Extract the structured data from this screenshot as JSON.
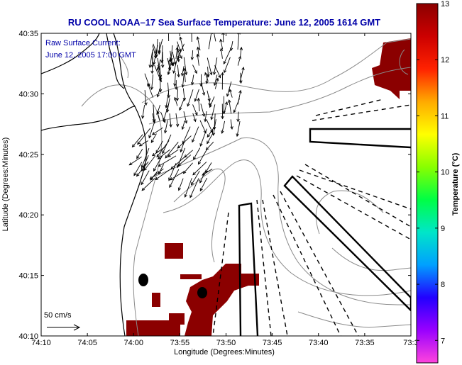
{
  "chart_data": {
    "type": "map",
    "title": "RU COOL  NOAA–17  Sea Surface Temperature:  June 12, 2005 1614 GMT",
    "xlabel": "Longitude (Degrees:Minutes)",
    "ylabel": "Latitude (Degrees:Minutes)",
    "x_ticks": [
      "74:10",
      "74:05",
      "74:00",
      "73:55",
      "73:50",
      "73:45",
      "73:40",
      "73:35",
      "73:3"
    ],
    "y_ticks": [
      "40:35",
      "40:30",
      "40:25",
      "40:20",
      "40:15",
      "40:10"
    ],
    "legend_lines": [
      "Raw Surface Current:",
      "June 12, 2005 17:00 GMT"
    ],
    "scale_label": "50 cm/s",
    "colorbar": {
      "label": "Temperature (°C)",
      "ticks": [
        "13",
        "12",
        "11",
        "10",
        "9",
        "8",
        "7"
      ],
      "min": 6.6,
      "max": 13,
      "colors": [
        "#ff44dd",
        "#9900ff",
        "#2200ff",
        "#00a0ff",
        "#00e6c8",
        "#00ff44",
        "#88ff00",
        "#ffff00",
        "#ffaa00",
        "#ff2200",
        "#cc0000",
        "#8b0000"
      ]
    },
    "sst_patch_value_C": 13,
    "colors": {
      "title": "#0000a8",
      "patch": "#8b0000",
      "contour": "#8a8a8a"
    }
  }
}
